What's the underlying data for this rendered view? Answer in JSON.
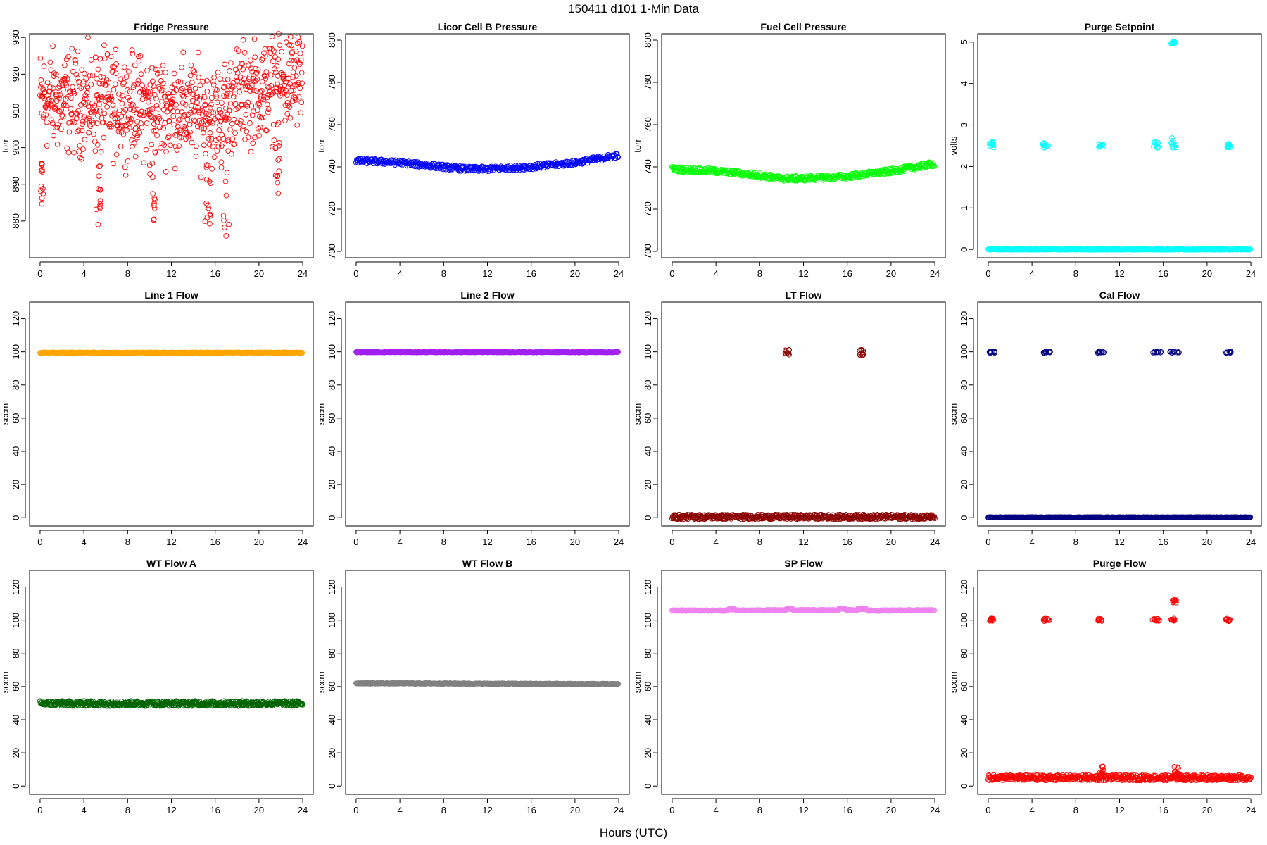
{
  "figure": {
    "title": "150411    d101    1-Min Data",
    "xlabel": "Hours (UTC)"
  },
  "chart_data": [
    {
      "type": "scatter",
      "title": "Fridge Pressure",
      "ylabel": "torr",
      "color": "#ff0000",
      "xlim": [
        -0.96,
        24.96
      ],
      "ylim": [
        870,
        931
      ],
      "xticks": [
        0,
        4,
        8,
        12,
        16,
        20,
        24
      ],
      "yticks": [
        880,
        890,
        900,
        910,
        920,
        930
      ],
      "series": [
        {
          "kind": "noise",
          "x0": 0,
          "x1": 24,
          "base": [
            [
              0,
              913
            ],
            [
              5,
              912
            ],
            [
              10,
              911
            ],
            [
              14,
              910
            ],
            [
              16,
              908
            ],
            [
              18,
              914
            ],
            [
              22,
              917
            ],
            [
              24,
              919
            ]
          ],
          "spread": 10,
          "step": 0.03
        },
        {
          "kind": "cluster",
          "x0": 0.05,
          "x1": 0.3,
          "y0": 883,
          "y1": 896
        },
        {
          "kind": "cluster",
          "x0": 5.0,
          "x1": 5.5,
          "y0": 879,
          "y1": 898
        },
        {
          "kind": "cluster",
          "x0": 10.0,
          "x1": 10.5,
          "y0": 878,
          "y1": 898
        },
        {
          "kind": "cluster",
          "x0": 15.0,
          "x1": 15.6,
          "y0": 878,
          "y1": 900
        },
        {
          "kind": "cluster",
          "x0": 16.5,
          "x1": 17.3,
          "y0": 873,
          "y1": 905
        },
        {
          "kind": "cluster",
          "x0": 21.5,
          "x1": 21.9,
          "y0": 886,
          "y1": 903
        }
      ]
    },
    {
      "type": "scatter",
      "title": "Licor Cell B Pressure",
      "ylabel": "torr",
      "color": "#0000ff",
      "xlim": [
        -0.96,
        24.96
      ],
      "ylim": [
        697,
        803
      ],
      "xticks": [
        0,
        4,
        8,
        12,
        16,
        20,
        24
      ],
      "yticks": [
        700,
        720,
        740,
        760,
        780,
        800
      ],
      "series": [
        {
          "kind": "band",
          "points": [
            [
              0,
              743
            ],
            [
              4,
              742
            ],
            [
              8,
              740
            ],
            [
              10,
              739
            ],
            [
              12,
              739
            ],
            [
              16,
              740
            ],
            [
              20,
              742
            ],
            [
              24,
              745.5
            ]
          ],
          "spread": 1.2,
          "step": 0.05
        }
      ]
    },
    {
      "type": "scatter",
      "title": "Fuel Cell Pressure",
      "ylabel": "torr",
      "color": "#00ff00",
      "xlim": [
        -0.96,
        24.96
      ],
      "ylim": [
        697,
        803
      ],
      "xticks": [
        0,
        4,
        8,
        12,
        16,
        20,
        24
      ],
      "yticks": [
        700,
        720,
        740,
        760,
        780,
        800
      ],
      "series": [
        {
          "kind": "band",
          "points": [
            [
              0,
              739
            ],
            [
              4,
              738
            ],
            [
              8,
              736
            ],
            [
              10,
              734.5
            ],
            [
              12,
              734.5
            ],
            [
              16,
              735.5
            ],
            [
              20,
              738
            ],
            [
              24,
              741.5
            ]
          ],
          "spread": 1.2,
          "step": 0.05
        }
      ]
    },
    {
      "type": "scatter",
      "title": "Purge Setpoint",
      "ylabel": "volts",
      "color": "#00ffff",
      "xlim": [
        -0.96,
        24.96
      ],
      "ylim": [
        -0.2,
        5.2
      ],
      "xticks": [
        0,
        4,
        8,
        12,
        16,
        20,
        24
      ],
      "yticks": [
        0,
        1,
        2,
        3,
        4,
        5
      ],
      "series": [
        {
          "kind": "band",
          "points": [
            [
              0,
              0
            ],
            [
              24,
              0
            ]
          ],
          "spread": 0.01,
          "step": 0.05
        },
        {
          "kind": "cluster",
          "x0": 0.1,
          "x1": 0.5,
          "y0": 2.45,
          "y1": 2.6
        },
        {
          "kind": "cluster",
          "x0": 5.0,
          "x1": 5.5,
          "y0": 2.45,
          "y1": 2.6
        },
        {
          "kind": "cluster",
          "x0": 10.1,
          "x1": 10.5,
          "y0": 2.45,
          "y1": 2.55
        },
        {
          "kind": "cluster",
          "x0": 15.1,
          "x1": 15.6,
          "y0": 2.45,
          "y1": 2.6
        },
        {
          "kind": "cluster",
          "x0": 16.7,
          "x1": 17.2,
          "y0": 2.45,
          "y1": 2.7
        },
        {
          "kind": "cluster",
          "x0": 16.7,
          "x1": 17.1,
          "y0": 4.95,
          "y1": 5.02
        },
        {
          "kind": "cluster",
          "x0": 21.8,
          "x1": 22.1,
          "y0": 2.45,
          "y1": 2.55
        }
      ]
    },
    {
      "type": "scatter",
      "title": "Line 1 Flow",
      "ylabel": "sccm",
      "color": "#ffa500",
      "xlim": [
        -0.96,
        24.96
      ],
      "ylim": [
        -5,
        130
      ],
      "xticks": [
        0,
        4,
        8,
        12,
        16,
        20,
        24
      ],
      "yticks": [
        0,
        20,
        40,
        60,
        80,
        100,
        120
      ],
      "series": [
        {
          "kind": "band",
          "points": [
            [
              0,
              99.5
            ],
            [
              24,
              99.5
            ]
          ],
          "spread": 0.2,
          "step": 0.05
        }
      ]
    },
    {
      "type": "scatter",
      "title": "Line 2 Flow",
      "ylabel": "sccm",
      "color": "#a020f0",
      "xlim": [
        -0.96,
        24.96
      ],
      "ylim": [
        -5,
        130
      ],
      "xticks": [
        0,
        4,
        8,
        12,
        16,
        20,
        24
      ],
      "yticks": [
        0,
        20,
        40,
        60,
        80,
        100,
        120
      ],
      "series": [
        {
          "kind": "band",
          "points": [
            [
              0,
              99.8
            ],
            [
              24,
              99.8
            ]
          ],
          "spread": 0.2,
          "step": 0.05
        }
      ]
    },
    {
      "type": "scatter",
      "title": "LT Flow",
      "ylabel": "sccm",
      "color": "#8b0000",
      "xlim": [
        -0.96,
        24.96
      ],
      "ylim": [
        -5,
        130
      ],
      "xticks": [
        0,
        4,
        8,
        12,
        16,
        20,
        24
      ],
      "yticks": [
        0,
        20,
        40,
        60,
        80,
        100,
        120
      ],
      "series": [
        {
          "kind": "band",
          "points": [
            [
              0,
              0.5
            ],
            [
              24,
              0.5
            ]
          ],
          "spread": 1.4,
          "step": 0.04
        },
        {
          "kind": "cluster",
          "x0": 10.3,
          "x1": 10.7,
          "y0": 97.5,
          "y1": 101.5
        },
        {
          "kind": "cluster",
          "x0": 17.1,
          "x1": 17.5,
          "y0": 97.5,
          "y1": 101.5
        }
      ]
    },
    {
      "type": "scatter",
      "title": "Cal Flow",
      "ylabel": "sccm",
      "color": "#000080",
      "xlim": [
        -0.96,
        24.96
      ],
      "ylim": [
        -5,
        130
      ],
      "xticks": [
        0,
        4,
        8,
        12,
        16,
        20,
        24
      ],
      "yticks": [
        0,
        20,
        40,
        60,
        80,
        100,
        120
      ],
      "series": [
        {
          "kind": "band",
          "points": [
            [
              0,
              0.2
            ],
            [
              24,
              0.2
            ]
          ],
          "spread": 0.2,
          "step": 0.05
        },
        {
          "kind": "cluster",
          "x0": 0.1,
          "x1": 0.6,
          "y0": 99.3,
          "y1": 100.2
        },
        {
          "kind": "cluster",
          "x0": 5.0,
          "x1": 5.8,
          "y0": 99.3,
          "y1": 100.2
        },
        {
          "kind": "cluster",
          "x0": 10.0,
          "x1": 10.6,
          "y0": 99.3,
          "y1": 100.2
        },
        {
          "kind": "cluster",
          "x0": 15.0,
          "x1": 15.8,
          "y0": 99.3,
          "y1": 100.2
        },
        {
          "kind": "cluster",
          "x0": 16.6,
          "x1": 17.5,
          "y0": 99.3,
          "y1": 100.2
        },
        {
          "kind": "cluster",
          "x0": 21.7,
          "x1": 22.2,
          "y0": 99.3,
          "y1": 100.2
        }
      ]
    },
    {
      "type": "scatter",
      "title": "WT Flow A",
      "ylabel": "sccm",
      "color": "#006400",
      "xlim": [
        -0.96,
        24.96
      ],
      "ylim": [
        -5,
        130
      ],
      "xticks": [
        0,
        4,
        8,
        12,
        16,
        20,
        24
      ],
      "yticks": [
        0,
        20,
        40,
        60,
        80,
        100,
        120
      ],
      "series": [
        {
          "kind": "band",
          "points": [
            [
              0,
              49.8
            ],
            [
              24,
              49.8
            ]
          ],
          "spread": 1.6,
          "step": 0.04
        }
      ]
    },
    {
      "type": "scatter",
      "title": "WT Flow B",
      "ylabel": "sccm",
      "color": "#808080",
      "xlim": [
        -0.96,
        24.96
      ],
      "ylim": [
        -5,
        130
      ],
      "xticks": [
        0,
        4,
        8,
        12,
        16,
        20,
        24
      ],
      "yticks": [
        0,
        20,
        40,
        60,
        80,
        100,
        120
      ],
      "series": [
        {
          "kind": "band",
          "points": [
            [
              0,
              62
            ],
            [
              24,
              61.5
            ]
          ],
          "spread": 0.3,
          "step": 0.05
        }
      ]
    },
    {
      "type": "scatter",
      "title": "SP Flow",
      "ylabel": "sccm",
      "color": "#ee82ee",
      "xlim": [
        -0.96,
        24.96
      ],
      "ylim": [
        -5,
        130
      ],
      "xticks": [
        0,
        4,
        8,
        12,
        16,
        20,
        24
      ],
      "yticks": [
        0,
        20,
        40,
        60,
        80,
        100,
        120
      ],
      "series": [
        {
          "kind": "band",
          "points": [
            [
              0,
              105.8
            ],
            [
              5,
              105.8
            ],
            [
              5.2,
              106.6
            ],
            [
              5.7,
              106.6
            ],
            [
              5.9,
              105.8
            ],
            [
              10.3,
              106
            ],
            [
              10.5,
              106.8
            ],
            [
              10.9,
              106.8
            ],
            [
              11.1,
              106
            ],
            [
              15.1,
              106
            ],
            [
              15.3,
              106.8
            ],
            [
              15.8,
              106.8
            ],
            [
              16,
              106
            ],
            [
              16.8,
              106
            ],
            [
              17,
              106.8
            ],
            [
              17.7,
              106.8
            ],
            [
              17.9,
              105.8
            ],
            [
              24,
              106
            ]
          ],
          "spread": 0.3,
          "step": 0.05
        }
      ]
    },
    {
      "type": "scatter",
      "title": "Purge Flow",
      "ylabel": "sccm",
      "color": "#ff0000",
      "xlim": [
        -0.96,
        24.96
      ],
      "ylim": [
        -5,
        130
      ],
      "xticks": [
        0,
        4,
        8,
        12,
        16,
        20,
        24
      ],
      "yticks": [
        0,
        20,
        40,
        60,
        80,
        100,
        120
      ],
      "series": [
        {
          "kind": "band",
          "points": [
            [
              0,
              5
            ],
            [
              24,
              5
            ]
          ],
          "spread": 1.6,
          "step": 0.04
        },
        {
          "kind": "cluster",
          "x0": 10.2,
          "x1": 10.5,
          "y0": 5,
          "y1": 12
        },
        {
          "kind": "cluster",
          "x0": 17.0,
          "x1": 17.4,
          "y0": 5,
          "y1": 12
        },
        {
          "kind": "cluster",
          "x0": 0.1,
          "x1": 0.5,
          "y0": 99.3,
          "y1": 101
        },
        {
          "kind": "cluster",
          "x0": 5.0,
          "x1": 5.6,
          "y0": 99.3,
          "y1": 101
        },
        {
          "kind": "cluster",
          "x0": 10.0,
          "x1": 10.4,
          "y0": 99.3,
          "y1": 101
        },
        {
          "kind": "cluster",
          "x0": 15.0,
          "x1": 15.7,
          "y0": 99.3,
          "y1": 101
        },
        {
          "kind": "cluster",
          "x0": 16.7,
          "x1": 17.3,
          "y0": 99.3,
          "y1": 101
        },
        {
          "kind": "cluster",
          "x0": 16.8,
          "x1": 17.2,
          "y0": 110.5,
          "y1": 112.5
        },
        {
          "kind": "cluster",
          "x0": 21.7,
          "x1": 22.1,
          "y0": 99.3,
          "y1": 101
        }
      ]
    }
  ]
}
